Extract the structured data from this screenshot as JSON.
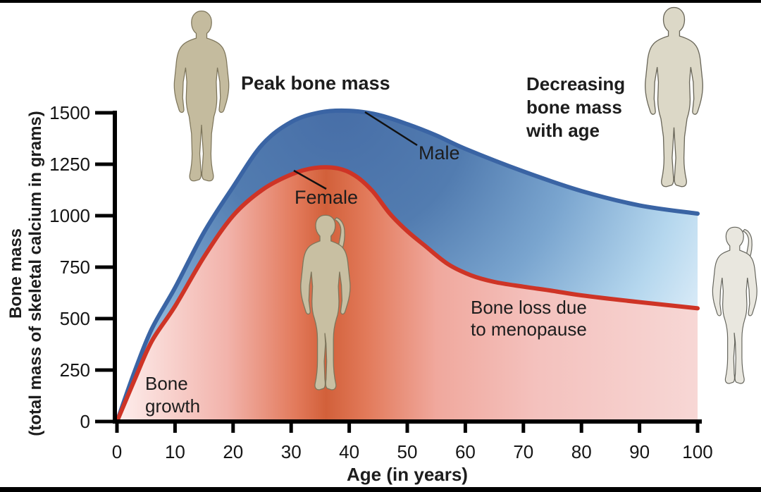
{
  "frame": {
    "background": "#ffffff",
    "top_bar_color": "#000000",
    "bottom_bar_color": "#000000"
  },
  "y_axis": {
    "title_line1": "Bone mass",
    "title_line2": "(total mass of skeletal calcium in grams)",
    "tick_labels": [
      "0",
      "250",
      "500",
      "750",
      "1000",
      "1250",
      "1500"
    ]
  },
  "x_axis": {
    "title": "Age (in years)",
    "tick_labels": [
      "0",
      "10",
      "20",
      "30",
      "40",
      "50",
      "60",
      "70",
      "80",
      "90",
      "100"
    ]
  },
  "labels": {
    "peak_bone_mass": "Peak bone mass",
    "decreasing_bone_mass": "Decreasing bone mass with age",
    "male": "Male",
    "female": "Female",
    "bone_growth": "Bone growth",
    "bone_loss_menopause": "Bone loss due to menopause"
  },
  "icons": [
    "male-silhouette-icon-young",
    "male-silhouette-icon-old",
    "female-silhouette-icon-young",
    "female-silhouette-icon-old"
  ],
  "colors": {
    "male_curve": "#3a64a4",
    "female_curve": "#ce3426",
    "male_fill_dark": "#476ea7",
    "male_fill_light": "#e8f3fb",
    "female_fill_dark": "#d2603a",
    "female_fill_light": "#fdeeed",
    "axis": "#000000",
    "text": "#1d1d1d"
  },
  "chart_data": {
    "type": "area",
    "title": "",
    "xlabel": "Age (in years)",
    "ylabel": "Bone mass (total mass of skeletal calcium in grams)",
    "xlim": [
      0,
      100
    ],
    "ylim": [
      0,
      1500
    ],
    "x_ticks": [
      0,
      10,
      20,
      30,
      40,
      50,
      60,
      70,
      80,
      90,
      100
    ],
    "y_ticks": [
      0,
      250,
      500,
      750,
      1000,
      1250,
      1500
    ],
    "grid": false,
    "legend": "inline-callouts",
    "series": [
      {
        "name": "Male",
        "color": "#3a64a4",
        "fill": "blue-gradient",
        "x": [
          0,
          3,
          6,
          10,
          15,
          20,
          25,
          30,
          35,
          40,
          45,
          50,
          55,
          60,
          70,
          80,
          90,
          100
        ],
        "values": [
          0,
          240,
          450,
          650,
          920,
          1140,
          1345,
          1455,
          1502,
          1510,
          1490,
          1445,
          1390,
          1325,
          1215,
          1120,
          1050,
          1010
        ]
      },
      {
        "name": "Female",
        "color": "#ce3426",
        "fill": "red-pink-gradient",
        "x": [
          0,
          3,
          6,
          10,
          15,
          20,
          25,
          30,
          34,
          38,
          41,
          44,
          47,
          50,
          53,
          57,
          61,
          65,
          70,
          75,
          80,
          90,
          100
        ],
        "values": [
          0,
          200,
          390,
          560,
          800,
          1000,
          1125,
          1200,
          1232,
          1230,
          1195,
          1120,
          1010,
          925,
          855,
          765,
          710,
          678,
          655,
          635,
          613,
          580,
          550
        ]
      }
    ],
    "annotations": [
      {
        "text": "Peak bone mass",
        "x": 34,
        "y": 1560
      },
      {
        "text": "Decreasing bone mass with age",
        "x": 76,
        "y": 1480
      },
      {
        "text": "Male",
        "x": 53,
        "y": 1290
      },
      {
        "text": "Female",
        "x": 33,
        "y": 1090
      },
      {
        "text": "Bone growth",
        "x": 6,
        "y": 220
      },
      {
        "text": "Bone loss due to menopause",
        "x": 62,
        "y": 560
      }
    ]
  }
}
